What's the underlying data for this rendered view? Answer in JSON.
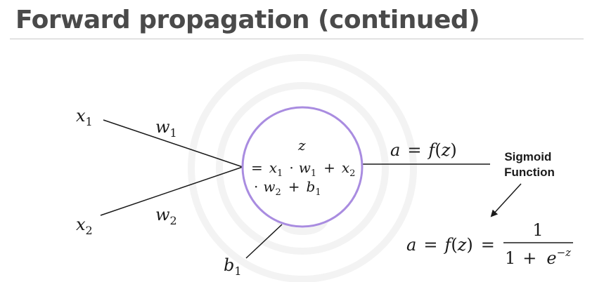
{
  "title": "Forward propagation (continued)",
  "colors": {
    "title_text": "#4a4a4a",
    "rule": "#c9c9c9",
    "neuron_stroke": "#a98ce0",
    "lines": "#1a1a1a",
    "watermark": "#f3f3f3"
  },
  "inputs": {
    "x1": {
      "base": "x",
      "sub": "1"
    },
    "x2": {
      "base": "x",
      "sub": "2"
    }
  },
  "weights": {
    "w1": {
      "base": "w",
      "sub": "1"
    },
    "w2": {
      "base": "w",
      "sub": "2"
    }
  },
  "bias": {
    "base": "b",
    "sub": "1"
  },
  "neuron": {
    "line1": "z",
    "line2": {
      "eq": "=",
      "x1": "x",
      "x1_sub": "1",
      "dot1": "·",
      "w1": "w",
      "w1_sub": "1",
      "plus1": "+",
      "x2": "x",
      "x2_sub": "2"
    },
    "line3": {
      "dot": "·",
      "w2": "w",
      "w2_sub": "2",
      "plus": "+",
      "b1": "b",
      "b1_sub": "1"
    }
  },
  "output_label": {
    "a": "a",
    "eq": "=",
    "f": "f",
    "open": "(",
    "z": "z",
    "close": ")"
  },
  "sigmoid_label": {
    "line1": "Sigmoid",
    "line2": "Function"
  },
  "sigmoid_formula": {
    "lhs": {
      "a": "a",
      "eq": "=",
      "f": "f",
      "open": "(",
      "z": "z",
      "close": ")",
      "eq2": "="
    },
    "numerator": "1",
    "denominator": {
      "one": "1",
      "plus": "+",
      "e": "e",
      "exp": "−z"
    }
  }
}
